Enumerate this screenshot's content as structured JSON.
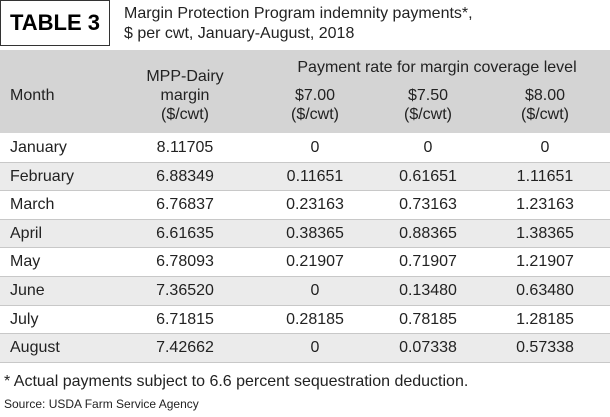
{
  "header": {
    "label": "TABLE 3",
    "title_lines": [
      "Margin Protection Program indemnity payments*,",
      "$ per cwt, January-August, 2018"
    ]
  },
  "table": {
    "columns": [
      {
        "lines": [
          "Month"
        ]
      },
      {
        "lines": [
          "MPP-Dairy",
          "margin",
          "($/cwt)"
        ]
      },
      {
        "lines": [
          "$7.00",
          "($/cwt)"
        ]
      },
      {
        "lines": [
          "$7.50",
          "($/cwt)"
        ]
      },
      {
        "lines": [
          "$8.00",
          "($/cwt)"
        ]
      }
    ],
    "group_header": "Payment rate for margin coverage level",
    "rows": [
      [
        "January",
        "8.11705",
        "0",
        "0",
        "0"
      ],
      [
        "February",
        "6.88349",
        "0.11651",
        "0.61651",
        "1.11651"
      ],
      [
        "March",
        "6.76837",
        "0.23163",
        "0.73163",
        "1.23163"
      ],
      [
        "April",
        "6.61635",
        "0.38365",
        "0.88365",
        "1.38365"
      ],
      [
        "May",
        "6.78093",
        "0.21907",
        "0.71907",
        "1.21907"
      ],
      [
        "June",
        "7.36520",
        "0",
        "0.13480",
        "0.63480"
      ],
      [
        "July",
        "6.71815",
        "0.28185",
        "0.78185",
        "1.28185"
      ],
      [
        "August",
        "7.42662",
        "0",
        "0.07338",
        "0.57338"
      ]
    ]
  },
  "footnote": "* Actual payments subject to 6.6 percent sequestration deduction.",
  "source": "Source: USDA Farm Service Agency"
}
